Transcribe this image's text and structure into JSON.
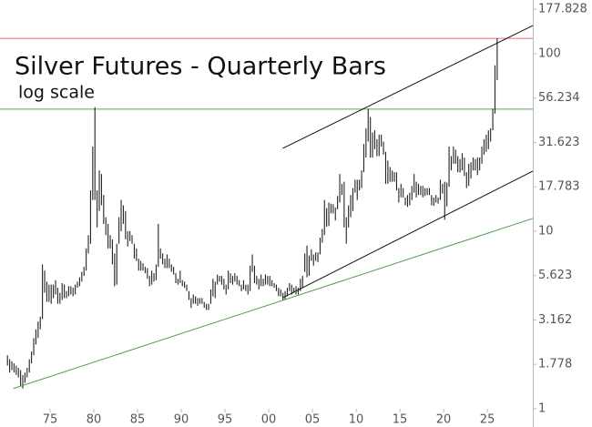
{
  "chart_data": {
    "type": "hlbar",
    "title": "Silver Futures - Quarterly Bars",
    "subtitle": "log scale",
    "log_y": true,
    "xlim": [
      1969.27,
      2030.2
    ],
    "ylim": [
      0.789,
      200.7
    ],
    "xticks": [
      {
        "value": 1975,
        "label": "75"
      },
      {
        "value": 1980,
        "label": "80"
      },
      {
        "value": 1985,
        "label": "85"
      },
      {
        "value": 1990,
        "label": "90"
      },
      {
        "value": 1995,
        "label": "95"
      },
      {
        "value": 2000,
        "label": "00"
      },
      {
        "value": 2005,
        "label": "05"
      },
      {
        "value": 2010,
        "label": "10"
      },
      {
        "value": 2015,
        "label": "15"
      },
      {
        "value": 2020,
        "label": "20"
      },
      {
        "value": 2025,
        "label": "25"
      }
    ],
    "yticks": [
      1,
      1.778,
      3.162,
      5.623,
      10,
      17.783,
      31.623,
      56.234,
      100,
      177.828
    ],
    "color": "#222222",
    "x": [
      1970,
      1970.25,
      1970.5,
      1970.75,
      1971,
      1971.25,
      1971.5,
      1971.75,
      1972,
      1972.25,
      1972.5,
      1972.75,
      1973,
      1973.25,
      1973.5,
      1973.75,
      1974,
      1974.25,
      1974.5,
      1974.75,
      1975,
      1975.25,
      1975.5,
      1975.75,
      1976,
      1976.25,
      1976.5,
      1976.75,
      1977,
      1977.25,
      1977.5,
      1977.75,
      1978,
      1978.25,
      1978.5,
      1978.75,
      1979,
      1979.25,
      1979.5,
      1979.75,
      1980,
      1980.25,
      1980.5,
      1980.75,
      1981,
      1981.25,
      1981.5,
      1981.75,
      1982,
      1982.25,
      1982.5,
      1982.75,
      1983,
      1983.25,
      1983.5,
      1983.75,
      1984,
      1984.25,
      1984.5,
      1984.75,
      1985,
      1985.25,
      1985.5,
      1985.75,
      1986,
      1986.25,
      1986.5,
      1986.75,
      1987,
      1987.25,
      1987.5,
      1987.75,
      1988,
      1988.25,
      1988.5,
      1988.75,
      1989,
      1989.25,
      1989.5,
      1989.75,
      1990,
      1990.25,
      1990.5,
      1990.75,
      1991,
      1991.25,
      1991.5,
      1991.75,
      1992,
      1992.25,
      1992.5,
      1992.75,
      1993,
      1993.25,
      1993.5,
      1993.75,
      1994,
      1994.25,
      1994.5,
      1994.75,
      1995,
      1995.25,
      1995.5,
      1995.75,
      1996,
      1996.25,
      1996.5,
      1996.75,
      1997,
      1997.25,
      1997.5,
      1997.75,
      1998,
      1998.25,
      1998.5,
      1998.75,
      1999,
      1999.25,
      1999.5,
      1999.75,
      2000,
      2000.25,
      2000.5,
      2000.75,
      2001,
      2001.25,
      2001.5,
      2001.75,
      2002,
      2002.25,
      2002.5,
      2002.75,
      2003,
      2003.25,
      2003.5,
      2003.75,
      2004,
      2004.25,
      2004.5,
      2004.75,
      2005,
      2005.25,
      2005.5,
      2005.75,
      2006,
      2006.25,
      2006.5,
      2006.75,
      2007,
      2007.25,
      2007.5,
      2007.75,
      2008,
      2008.25,
      2008.5,
      2008.75,
      2009,
      2009.25,
      2009.5,
      2009.75,
      2010,
      2010.25,
      2010.5,
      2010.75,
      2011,
      2011.25,
      2011.5,
      2011.75,
      2012,
      2012.25,
      2012.5,
      2012.75,
      2013,
      2013.25,
      2013.5,
      2013.75,
      2014,
      2014.25,
      2014.5,
      2014.75,
      2015,
      2015.25,
      2015.5,
      2015.75,
      2016,
      2016.25,
      2016.5,
      2016.75,
      2017,
      2017.25,
      2017.5,
      2017.75,
      2018,
      2018.25,
      2018.5,
      2018.75,
      2019,
      2019.25,
      2019.5,
      2019.75,
      2020,
      2020.25,
      2020.5,
      2020.75,
      2021,
      2021.25,
      2021.5,
      2021.75,
      2022,
      2022.25,
      2022.5,
      2022.75,
      2023,
      2023.25,
      2023.5,
      2023.75,
      2024,
      2024.25,
      2024.5,
      2024.75,
      2025,
      2025.25,
      2025.5,
      2025.75,
      2026
    ],
    "high": [
      2.0,
      1.9,
      1.85,
      1.8,
      1.75,
      1.7,
      1.65,
      1.55,
      1.6,
      1.7,
      1.9,
      2.1,
      2.5,
      2.8,
      3.1,
      3.3,
      6.5,
      6.0,
      5.2,
      5.0,
      5.0,
      5.0,
      5.3,
      4.8,
      4.5,
      5.1,
      5.0,
      4.6,
      4.9,
      4.9,
      4.8,
      5.0,
      5.2,
      5.5,
      5.9,
      6.3,
      8.0,
      9.5,
      17,
      30,
      50,
      17,
      22,
      21,
      16,
      12,
      11,
      9.5,
      9,
      7.5,
      8.5,
      12,
      15,
      14,
      13,
      10,
      10,
      9.5,
      8.5,
      8,
      7,
      6.8,
      6.6,
      6.3,
      6.2,
      5.6,
      6,
      5.8,
      6.5,
      11,
      8,
      7.5,
      7,
      7.4,
      7,
      6.5,
      6.3,
      5.8,
      5.4,
      6,
      5.3,
      5.2,
      5,
      4.6,
      4.2,
      4.4,
      4.3,
      4.2,
      4.2,
      4.2,
      4,
      3.9,
      3.9,
      4.7,
      5.4,
      5.2,
      5.7,
      5.6,
      5.6,
      5.4,
      5.0,
      6.0,
      5.8,
      5.6,
      5.8,
      5.6,
      5.3,
      5.0,
      5.3,
      5.0,
      5.0,
      6.4,
      7.4,
      6.4,
      5.6,
      5.4,
      5.7,
      5.4,
      5.7,
      5.6,
      5.6,
      5.3,
      5.1,
      5.0,
      4.8,
      4.7,
      4.5,
      4.6,
      4.8,
      5.1,
      5.0,
      4.8,
      4.9,
      4.8,
      5.4,
      5.6,
      7.5,
      8.3,
      7.3,
      7.9,
      7.4,
      7.6,
      7.6,
      9.2,
      10.3,
      15,
      13.5,
      14.5,
      14.3,
      14.2,
      13.6,
      15.8,
      21,
      18.5,
      19,
      12,
      14,
      16,
      17.5,
      19.5,
      19.5,
      19.5,
      22,
      31,
      38,
      49,
      44,
      36,
      37,
      33,
      35,
      35,
      32,
      28,
      25,
      23,
      22,
      21.5,
      21.5,
      17.5,
      18.5,
      17.5,
      15.5,
      16,
      16.5,
      18,
      21,
      19,
      18.5,
      18,
      18,
      17.5,
      17.5,
      17.5,
      16,
      15.5,
      16,
      15.5,
      19.5,
      18.5,
      19,
      18.8,
      30,
      26.5,
      30,
      28.8,
      26.5,
      25.5,
      27.5,
      26,
      21.5,
      24,
      24.5,
      26,
      25.5,
      26,
      26,
      30,
      33,
      35,
      37,
      38,
      49,
      86,
      122
    ],
    "low": [
      1.75,
      1.6,
      1.65,
      1.6,
      1.55,
      1.5,
      1.35,
      1.3,
      1.4,
      1.5,
      1.6,
      1.8,
      2.0,
      2.3,
      2.5,
      2.8,
      3.2,
      4.5,
      4.0,
      4.0,
      3.9,
      4.2,
      4.4,
      3.9,
      3.9,
      4.1,
      4.2,
      4.2,
      4.3,
      4.4,
      4.3,
      4.4,
      4.8,
      4.9,
      5.2,
      5.6,
      6.0,
      7.5,
      8.5,
      15,
      15,
      10.5,
      13,
      14,
      11,
      9.5,
      8,
      8,
      6.5,
      4.9,
      5.0,
      8.5,
      10,
      11,
      9,
      8.2,
      8.8,
      8.5,
      7,
      6.8,
      6,
      6,
      6,
      5.8,
      5.4,
      4.9,
      5,
      5.2,
      5.3,
      6.3,
      7,
      6.5,
      6.2,
      6.2,
      6.2,
      5.9,
      5.7,
      5.1,
      5,
      5.1,
      4.9,
      4.8,
      4.6,
      4.1,
      3.7,
      3.9,
      3.9,
      3.8,
      3.9,
      3.9,
      3.7,
      3.6,
      3.6,
      3.9,
      4.3,
      4.2,
      5.0,
      5.2,
      5.0,
      4.7,
      4.4,
      4.7,
      5.1,
      5.0,
      5.2,
      5.0,
      4.9,
      4.6,
      4.7,
      4.6,
      4.4,
      4.6,
      5.9,
      5.1,
      5.0,
      4.7,
      4.9,
      4.9,
      5.0,
      5.0,
      4.9,
      4.9,
      4.8,
      4.6,
      4.3,
      4.3,
      4.1,
      4.1,
      4.3,
      4.6,
      4.4,
      4.5,
      4.4,
      4.4,
      4.6,
      4.8,
      5.9,
      5.5,
      5.6,
      6.8,
      6.4,
      6.8,
      6.7,
      7.4,
      8.6,
      9.5,
      10.6,
      10.7,
      12.6,
      12.6,
      11.5,
      13.3,
      14.5,
      16,
      10.5,
      8.5,
      10.5,
      12,
      13,
      16.5,
      15,
      17,
      17.5,
      21.5,
      26,
      32,
      26,
      26,
      29,
      26.5,
      26.5,
      30,
      27,
      18.5,
      18.5,
      19,
      19,
      19,
      17,
      14.5,
      15.5,
      15.5,
      14,
      13.7,
      14,
      15,
      16.5,
      15.5,
      16,
      16,
      15.5,
      15.8,
      16,
      16,
      14,
      13.9,
      14.5,
      14.3,
      15,
      16.3,
      11.6,
      13.8,
      17.8,
      22,
      24,
      24,
      21.5,
      21.4,
      22,
      20.5,
      17.5,
      18,
      19.8,
      22,
      22,
      20.7,
      22,
      24,
      27,
      28,
      29,
      32,
      37,
      46,
      71
    ],
    "hlines": [
      {
        "value": 122,
        "color": "#e07070"
      },
      {
        "value": 48.7,
        "color": "#5aa85a"
      }
    ],
    "trendlines": [
      {
        "x": [
          2001.6,
          2030.2
        ],
        "y": [
          29.3,
          144
        ],
        "color": "#111111"
      },
      {
        "x": [
          2001.6,
          2030.2
        ],
        "y": [
          4.22,
          21.8
        ],
        "color": "#111111"
      },
      {
        "x": [
          1970.8,
          2030.2
        ],
        "y": [
          1.3,
          11.8
        ],
        "color": "#4f9f4f"
      }
    ]
  }
}
